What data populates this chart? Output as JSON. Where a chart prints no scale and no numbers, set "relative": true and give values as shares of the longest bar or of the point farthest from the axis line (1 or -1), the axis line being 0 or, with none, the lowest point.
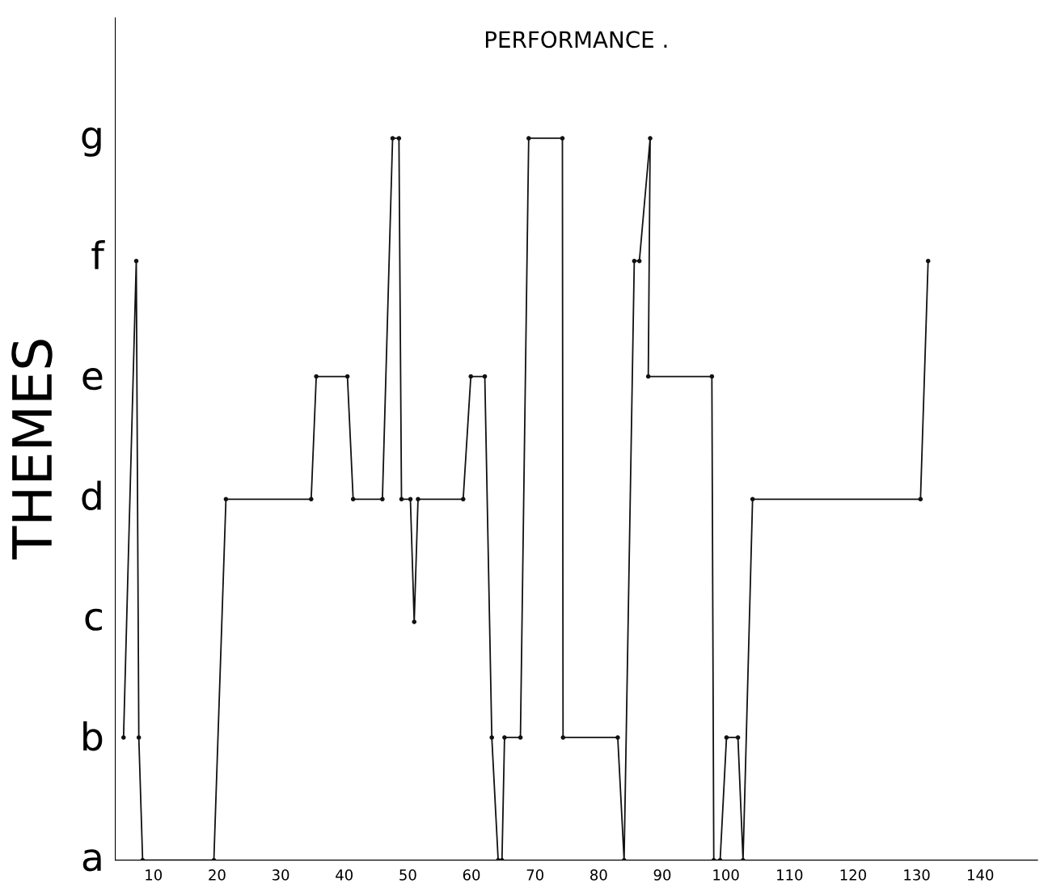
{
  "chart_data": {
    "type": "line",
    "title": "PERFORMANCE .",
    "ylabel": "THEMES",
    "relative": true,
    "x": [
      5.3,
      7.3,
      7.7,
      8.3,
      19.5,
      21.4,
      34.8,
      35.6,
      40.5,
      41.4,
      46.0,
      47.6,
      48.6,
      49.0,
      50.4,
      51.0,
      51.6,
      58.7,
      59.9,
      62.1,
      63.2,
      64.2,
      64.8,
      65.2,
      67.7,
      69.0,
      74.3,
      74.4,
      83.0,
      84.0,
      85.6,
      86.4,
      88.1,
      87.8,
      97.8,
      98.1,
      99.1,
      100.1,
      101.9,
      102.7,
      104.2,
      130.6,
      131.8
    ],
    "series": [
      {
        "color": "#111111",
        "values": [
          0.17,
          0.83,
          0.17,
          0,
          0,
          0.5,
          0.5,
          0.67,
          0.67,
          0.5,
          0.5,
          1,
          1,
          0.5,
          0.5,
          0.33,
          0.5,
          0.5,
          0.67,
          0.67,
          0.17,
          0,
          0,
          0.17,
          0.17,
          1,
          1,
          0.17,
          0.17,
          0,
          0.83,
          0.83,
          1,
          0.67,
          0.67,
          0,
          0,
          0.17,
          0.17,
          0,
          0.5,
          0.5,
          0.83
        ]
      }
    ],
    "annotations": [
      "a",
      "b",
      "c",
      "d",
      "e",
      "f",
      "g"
    ],
    "xlim": [
      4,
      149
    ],
    "xticks": [
      10,
      20,
      30,
      40,
      50,
      60,
      70,
      80,
      90,
      100,
      110,
      120,
      130,
      140
    ],
    "grid": false,
    "marker": "circle",
    "line_style": "solid"
  }
}
